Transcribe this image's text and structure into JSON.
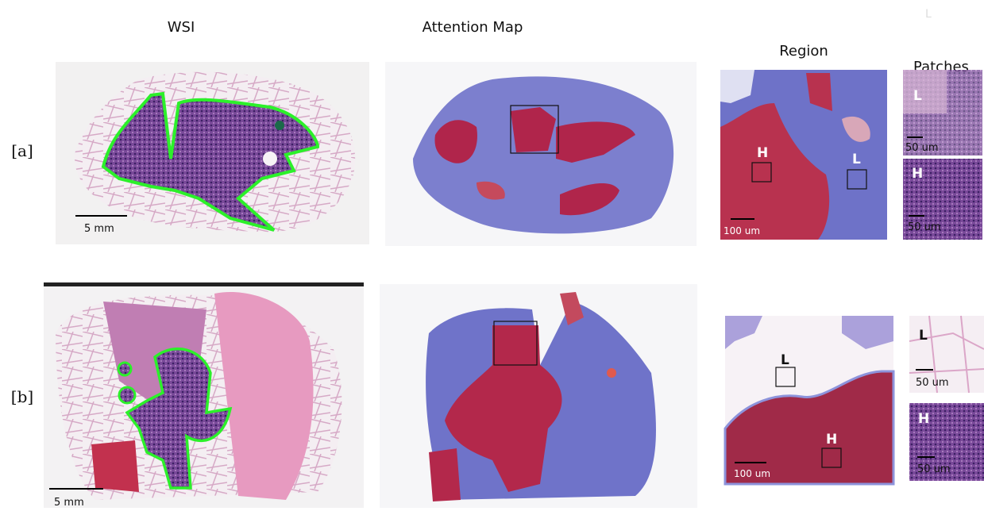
{
  "corner_mark": "L",
  "columns": [
    "WSI",
    "Attention Map",
    "Region",
    "Patches"
  ],
  "rows": [
    {
      "label": "[a]",
      "wsi_scale": "5 mm",
      "region_scale": "100 um",
      "region_marks": [
        "H",
        "L"
      ],
      "patches": [
        {
          "mark": "L",
          "scale": "50 um"
        },
        {
          "mark": "H",
          "scale": "50 um"
        }
      ]
    },
    {
      "label": "[b]",
      "wsi_scale": "5 mm",
      "region_scale": "100 um",
      "region_marks": [
        "L",
        "H"
      ],
      "patches": [
        {
          "mark": "L",
          "scale": "50 um"
        },
        {
          "mark": "H",
          "scale": "50 um"
        }
      ]
    }
  ]
}
